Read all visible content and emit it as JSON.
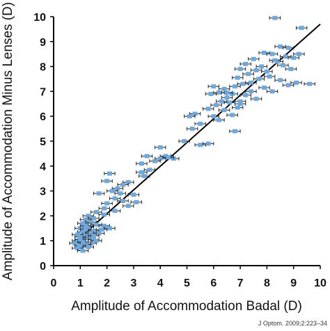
{
  "chart_data": {
    "type": "scatter",
    "title": "",
    "xlabel": "Amplitude of Accommodation Badal (D)",
    "ylabel": "Amplitude of Accommodation Minus Lenses (D)",
    "xlim": [
      0,
      10
    ],
    "ylim": [
      0,
      10
    ],
    "xticks": [
      "0",
      "1",
      "2",
      "3",
      "4",
      "5",
      "6",
      "7",
      "8",
      "9",
      "10"
    ],
    "yticks": [
      "0",
      "1",
      "2",
      "3",
      "4",
      "5",
      "6",
      "7",
      "8",
      "9",
      "10"
    ],
    "grid": false,
    "legend": "none",
    "colors": {
      "point": "#6fa8dc",
      "errorbar": "#222222",
      "line": "#000000",
      "axis": "#000000"
    },
    "error_bars": "horizontal, approx ±0.2 D",
    "regression_line": {
      "x": [
        0.75,
        10.0
      ],
      "y": [
        0.9,
        9.7
      ]
    },
    "points": [
      {
        "x": 8.3,
        "y": 9.95
      },
      {
        "x": 9.3,
        "y": 9.55
      },
      {
        "x": 8.8,
        "y": 8.75
      },
      {
        "x": 8.5,
        "y": 8.8
      },
      {
        "x": 7.9,
        "y": 8.55
      },
      {
        "x": 8.2,
        "y": 8.5
      },
      {
        "x": 8.7,
        "y": 8.4
      },
      {
        "x": 9.0,
        "y": 8.35
      },
      {
        "x": 7.5,
        "y": 8.3
      },
      {
        "x": 8.4,
        "y": 8.2
      },
      {
        "x": 7.2,
        "y": 8.1
      },
      {
        "x": 7.8,
        "y": 8.0
      },
      {
        "x": 8.6,
        "y": 8.05
      },
      {
        "x": 7.0,
        "y": 7.9
      },
      {
        "x": 7.6,
        "y": 7.85
      },
      {
        "x": 8.9,
        "y": 7.9
      },
      {
        "x": 7.3,
        "y": 7.7
      },
      {
        "x": 8.1,
        "y": 7.6
      },
      {
        "x": 6.9,
        "y": 7.55
      },
      {
        "x": 7.7,
        "y": 7.5
      },
      {
        "x": 8.5,
        "y": 7.45
      },
      {
        "x": 9.1,
        "y": 7.35
      },
      {
        "x": 9.6,
        "y": 7.3
      },
      {
        "x": 8.8,
        "y": 7.25
      },
      {
        "x": 7.1,
        "y": 7.3
      },
      {
        "x": 6.8,
        "y": 7.2
      },
      {
        "x": 7.9,
        "y": 7.15
      },
      {
        "x": 6.4,
        "y": 7.1
      },
      {
        "x": 6.0,
        "y": 7.2
      },
      {
        "x": 7.4,
        "y": 7.0
      },
      {
        "x": 8.2,
        "y": 7.0
      },
      {
        "x": 6.2,
        "y": 6.95
      },
      {
        "x": 6.7,
        "y": 6.9
      },
      {
        "x": 7.2,
        "y": 6.85
      },
      {
        "x": 5.9,
        "y": 6.9
      },
      {
        "x": 6.5,
        "y": 6.75
      },
      {
        "x": 7.6,
        "y": 6.7
      },
      {
        "x": 6.3,
        "y": 6.6
      },
      {
        "x": 6.6,
        "y": 6.55
      },
      {
        "x": 7.0,
        "y": 6.6
      },
      {
        "x": 6.1,
        "y": 6.45
      },
      {
        "x": 5.8,
        "y": 6.3
      },
      {
        "x": 6.9,
        "y": 6.35
      },
      {
        "x": 6.4,
        "y": 6.25
      },
      {
        "x": 5.3,
        "y": 6.1
      },
      {
        "x": 5.1,
        "y": 6.0
      },
      {
        "x": 6.7,
        "y": 6.05
      },
      {
        "x": 6.2,
        "y": 5.85
      },
      {
        "x": 5.5,
        "y": 5.7
      },
      {
        "x": 5.2,
        "y": 5.5
      },
      {
        "x": 6.8,
        "y": 5.4
      },
      {
        "x": 4.9,
        "y": 5.0
      },
      {
        "x": 5.5,
        "y": 4.85
      },
      {
        "x": 5.8,
        "y": 4.9
      },
      {
        "x": 4.0,
        "y": 4.75
      },
      {
        "x": 4.2,
        "y": 4.4
      },
      {
        "x": 3.5,
        "y": 4.4
      },
      {
        "x": 4.0,
        "y": 4.3
      },
      {
        "x": 3.8,
        "y": 4.2
      },
      {
        "x": 4.5,
        "y": 4.3
      },
      {
        "x": 3.3,
        "y": 4.1
      },
      {
        "x": 3.6,
        "y": 3.85
      },
      {
        "x": 3.3,
        "y": 3.75
      },
      {
        "x": 3.4,
        "y": 3.6
      },
      {
        "x": 2.1,
        "y": 3.7
      },
      {
        "x": 2.0,
        "y": 3.4
      },
      {
        "x": 2.8,
        "y": 3.35
      },
      {
        "x": 2.6,
        "y": 3.25
      },
      {
        "x": 2.4,
        "y": 3.1
      },
      {
        "x": 2.2,
        "y": 3.0
      },
      {
        "x": 2.5,
        "y": 2.9
      },
      {
        "x": 3.0,
        "y": 2.85
      },
      {
        "x": 1.7,
        "y": 2.9
      },
      {
        "x": 2.3,
        "y": 2.7
      },
      {
        "x": 2.6,
        "y": 2.6
      },
      {
        "x": 3.1,
        "y": 2.55
      },
      {
        "x": 2.0,
        "y": 2.5
      },
      {
        "x": 2.8,
        "y": 2.4
      },
      {
        "x": 1.9,
        "y": 2.3
      },
      {
        "x": 2.3,
        "y": 2.2
      },
      {
        "x": 1.6,
        "y": 2.15
      },
      {
        "x": 1.9,
        "y": 2.05
      },
      {
        "x": 1.3,
        "y": 2.0
      },
      {
        "x": 1.5,
        "y": 1.9
      },
      {
        "x": 1.2,
        "y": 1.85
      },
      {
        "x": 1.4,
        "y": 1.75
      },
      {
        "x": 1.1,
        "y": 1.7
      },
      {
        "x": 1.6,
        "y": 1.65
      },
      {
        "x": 1.3,
        "y": 1.55
      },
      {
        "x": 1.0,
        "y": 1.5
      },
      {
        "x": 1.2,
        "y": 1.45
      },
      {
        "x": 1.5,
        "y": 1.4
      },
      {
        "x": 1.9,
        "y": 1.6
      },
      {
        "x": 1.1,
        "y": 1.35
      },
      {
        "x": 1.4,
        "y": 1.3
      },
      {
        "x": 0.9,
        "y": 1.25
      },
      {
        "x": 1.2,
        "y": 1.2
      },
      {
        "x": 1.7,
        "y": 1.3
      },
      {
        "x": 1.0,
        "y": 1.15
      },
      {
        "x": 1.3,
        "y": 1.1
      },
      {
        "x": 1.5,
        "y": 1.05
      },
      {
        "x": 0.9,
        "y": 1.0
      },
      {
        "x": 1.1,
        "y": 0.95
      },
      {
        "x": 1.4,
        "y": 0.9
      },
      {
        "x": 1.2,
        "y": 0.85
      },
      {
        "x": 0.8,
        "y": 0.9
      },
      {
        "x": 1.0,
        "y": 0.8
      },
      {
        "x": 1.3,
        "y": 0.75
      },
      {
        "x": 0.9,
        "y": 0.7
      },
      {
        "x": 1.1,
        "y": 0.6
      },
      {
        "x": 1.5,
        "y": 1.2
      },
      {
        "x": 1.8,
        "y": 1.45
      },
      {
        "x": 2.1,
        "y": 1.5
      },
      {
        "x": 1.0,
        "y": 1.05
      },
      {
        "x": 1.2,
        "y": 1.6
      },
      {
        "x": 1.6,
        "y": 1.0
      },
      {
        "x": 8.0,
        "y": 7.8
      },
      {
        "x": 7.4,
        "y": 7.35
      },
      {
        "x": 6.5,
        "y": 6.95
      },
      {
        "x": 8.3,
        "y": 8.25
      },
      {
        "x": 9.2,
        "y": 8.5
      },
      {
        "x": 7.0,
        "y": 6.5
      },
      {
        "x": 6.0,
        "y": 6.0
      },
      {
        "x": 4.3,
        "y": 4.35
      }
    ]
  },
  "source_note": "J Optom. 2009;2:223–34"
}
